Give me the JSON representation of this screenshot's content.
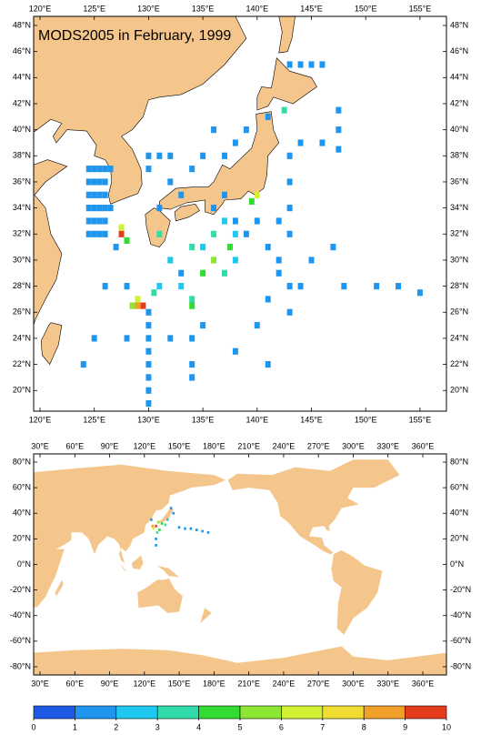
{
  "top_map": {
    "title": "MODS2005 in February, 1999",
    "lon_ticks": [
      {
        "value": 120,
        "label": "120°E"
      },
      {
        "value": 125,
        "label": "125°E"
      },
      {
        "value": 130,
        "label": "130°E"
      },
      {
        "value": 135,
        "label": "135°E"
      },
      {
        "value": 140,
        "label": "140°E"
      },
      {
        "value": 145,
        "label": "145°E"
      },
      {
        "value": 150,
        "label": "150°E"
      },
      {
        "value": 155,
        "label": "155°E"
      }
    ],
    "lat_ticks": [
      {
        "value": 20,
        "label": "20°N"
      },
      {
        "value": 22,
        "label": "22°N"
      },
      {
        "value": 24,
        "label": "24°N"
      },
      {
        "value": 26,
        "label": "26°N"
      },
      {
        "value": 28,
        "label": "28°N"
      },
      {
        "value": 30,
        "label": "30°N"
      },
      {
        "value": 32,
        "label": "32°N"
      },
      {
        "value": 34,
        "label": "34°N"
      },
      {
        "value": 36,
        "label": "36°N"
      },
      {
        "value": 38,
        "label": "38°N"
      },
      {
        "value": 40,
        "label": "40°N"
      },
      {
        "value": 42,
        "label": "42°N"
      },
      {
        "value": 44,
        "label": "44°N"
      },
      {
        "value": 46,
        "label": "46°N"
      },
      {
        "value": 48,
        "label": "48°N"
      }
    ],
    "cells": [
      [
        124.5,
        37,
        1
      ],
      [
        125,
        37,
        1
      ],
      [
        125.5,
        37,
        1
      ],
      [
        126,
        37,
        1
      ],
      [
        126.5,
        37,
        1
      ],
      [
        124.5,
        36,
        1
      ],
      [
        125,
        36,
        1
      ],
      [
        125.5,
        36,
        1
      ],
      [
        126,
        36,
        1
      ],
      [
        124.5,
        35,
        1
      ],
      [
        125,
        35,
        1
      ],
      [
        125.5,
        35,
        1
      ],
      [
        126,
        35,
        1
      ],
      [
        124.5,
        34,
        1
      ],
      [
        125,
        34,
        1
      ],
      [
        125.5,
        34,
        1
      ],
      [
        126,
        34,
        1
      ],
      [
        126.5,
        34,
        1
      ],
      [
        124.5,
        33,
        1
      ],
      [
        125,
        33,
        1
      ],
      [
        125.5,
        33,
        1
      ],
      [
        126,
        33,
        1
      ],
      [
        124.5,
        32,
        1
      ],
      [
        125,
        32,
        1
      ],
      [
        125.5,
        32,
        1
      ],
      [
        126,
        32,
        1
      ],
      [
        129.5,
        26.5,
        9.5
      ],
      [
        129,
        26.5,
        8
      ],
      [
        128.5,
        26.5,
        5
      ],
      [
        129,
        27,
        6
      ],
      [
        127.5,
        32,
        9
      ],
      [
        127.5,
        32.5,
        6
      ],
      [
        128,
        31.5,
        4
      ],
      [
        140,
        35,
        6
      ],
      [
        139.5,
        34.5,
        4
      ],
      [
        131,
        32,
        3
      ],
      [
        134,
        27,
        3
      ],
      [
        134,
        26.5,
        4
      ],
      [
        135,
        29,
        4
      ],
      [
        136,
        30,
        5
      ],
      [
        134,
        31,
        3
      ],
      [
        137,
        29,
        3
      ],
      [
        137.5,
        31,
        4
      ],
      [
        138,
        30,
        2
      ],
      [
        130,
        26,
        1
      ],
      [
        130,
        25,
        1
      ],
      [
        130,
        24,
        1
      ],
      [
        130,
        23,
        1
      ],
      [
        130,
        22,
        1
      ],
      [
        130,
        21,
        1
      ],
      [
        130,
        20,
        1
      ],
      [
        130,
        19,
        1
      ],
      [
        143,
        45,
        1
      ],
      [
        144,
        45,
        1
      ],
      [
        145,
        45,
        1
      ],
      [
        146,
        45,
        1
      ],
      [
        147.5,
        41.5,
        1
      ],
      [
        147.5,
        40,
        1
      ],
      [
        147.5,
        38.5,
        1
      ],
      [
        146,
        39,
        1
      ],
      [
        144,
        39,
        1
      ],
      [
        143,
        38,
        1
      ],
      [
        143,
        36,
        1
      ],
      [
        143,
        34,
        1
      ],
      [
        142,
        33,
        1
      ],
      [
        143,
        32,
        1
      ],
      [
        145,
        30,
        1
      ],
      [
        147,
        31,
        1
      ],
      [
        151,
        28,
        1
      ],
      [
        155,
        27.5,
        1
      ],
      [
        153,
        28,
        1
      ],
      [
        148,
        28,
        1
      ],
      [
        142,
        29,
        1
      ],
      [
        143,
        28,
        1
      ],
      [
        144,
        28,
        1
      ],
      [
        126,
        28,
        1
      ],
      [
        125,
        24,
        1
      ],
      [
        124,
        22,
        1
      ],
      [
        128,
        24,
        1
      ],
      [
        132,
        24,
        1
      ],
      [
        134,
        24,
        1
      ],
      [
        134,
        22,
        1
      ],
      [
        134,
        21,
        1
      ],
      [
        135,
        25,
        1
      ],
      [
        138,
        23,
        1
      ],
      [
        140,
        25,
        1
      ],
      [
        141,
        22,
        1
      ],
      [
        136,
        34,
        1
      ],
      [
        137,
        35,
        1
      ],
      [
        138,
        33,
        1
      ],
      [
        139,
        32,
        1
      ],
      [
        137,
        38,
        1
      ],
      [
        138,
        39,
        1
      ],
      [
        139,
        40,
        1
      ],
      [
        136,
        40,
        1
      ],
      [
        135,
        38,
        1
      ],
      [
        134,
        37,
        1
      ],
      [
        132,
        36,
        1
      ],
      [
        133,
        35,
        1
      ],
      [
        131,
        34,
        1
      ],
      [
        130,
        38,
        1
      ],
      [
        131,
        38,
        1
      ],
      [
        132,
        38,
        1
      ],
      [
        130,
        37,
        1
      ],
      [
        132,
        30,
        2
      ],
      [
        133,
        29,
        1
      ],
      [
        131,
        28,
        2
      ],
      [
        130.5,
        27.5,
        3
      ],
      [
        133,
        28,
        2
      ],
      [
        135,
        31,
        2
      ],
      [
        136,
        32,
        3
      ],
      [
        138,
        32,
        2
      ],
      [
        137,
        33,
        2
      ],
      [
        140,
        33,
        1
      ],
      [
        141,
        31,
        1
      ],
      [
        142,
        30,
        1
      ],
      [
        143,
        26,
        1
      ],
      [
        141,
        27,
        1
      ],
      [
        142.5,
        41.5,
        3
      ],
      [
        141,
        41,
        1
      ],
      [
        127,
        31,
        1
      ],
      [
        128,
        28,
        1
      ]
    ]
  },
  "world_map": {
    "lon_ticks": [
      {
        "value": 30,
        "label": "30°E"
      },
      {
        "value": 60,
        "label": "60°E"
      },
      {
        "value": 90,
        "label": "90°E"
      },
      {
        "value": 120,
        "label": "120°E"
      },
      {
        "value": 150,
        "label": "150°E"
      },
      {
        "value": 180,
        "label": "180°E"
      },
      {
        "value": 210,
        "label": "210°E"
      },
      {
        "value": 240,
        "label": "240°E"
      },
      {
        "value": 270,
        "label": "270°E"
      },
      {
        "value": 300,
        "label": "300°E"
      },
      {
        "value": 330,
        "label": "330°E"
      },
      {
        "value": 360,
        "label": "360°E"
      }
    ],
    "lat_ticks": [
      {
        "value": -80,
        "label": "-80°N"
      },
      {
        "value": -60,
        "label": "-60°N"
      },
      {
        "value": -40,
        "label": "-40°N"
      },
      {
        "value": -20,
        "label": "-20°N"
      },
      {
        "value": 0,
        "label": "0°N"
      },
      {
        "value": 20,
        "label": "20°N"
      },
      {
        "value": 40,
        "label": "40°N"
      },
      {
        "value": 60,
        "label": "60°N"
      },
      {
        "value": 80,
        "label": "80°N"
      }
    ],
    "cells": [
      [
        130,
        30,
        9
      ],
      [
        128,
        28,
        6
      ],
      [
        132,
        33,
        5
      ],
      [
        135,
        32,
        4
      ],
      [
        131,
        25,
        3
      ],
      [
        130,
        20,
        1
      ],
      [
        130,
        15,
        1
      ],
      [
        140,
        35,
        2
      ],
      [
        145,
        40,
        1
      ],
      [
        150,
        29,
        1
      ],
      [
        155,
        28,
        1
      ],
      [
        160,
        28,
        1
      ],
      [
        165,
        27,
        1
      ],
      [
        170,
        26,
        1
      ],
      [
        175,
        25,
        1
      ],
      [
        127,
        30,
        8
      ],
      [
        133,
        27,
        4
      ],
      [
        138,
        31,
        3
      ],
      [
        126,
        35,
        1
      ],
      [
        143,
        44,
        1
      ]
    ]
  },
  "colorbar": {
    "ticks": [
      0,
      1,
      2,
      3,
      4,
      5,
      6,
      7,
      8,
      9,
      10
    ],
    "colors": [
      "#1e5ae6",
      "#1e96f0",
      "#1ec8f0",
      "#32dcaa",
      "#32dc32",
      "#8ce632",
      "#d2f032",
      "#f0dc32",
      "#f0a028",
      "#e63c1e"
    ]
  }
}
